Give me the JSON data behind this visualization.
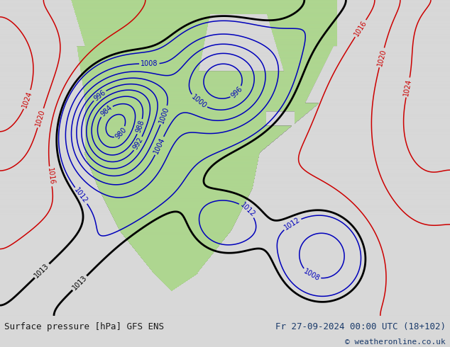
{
  "title_left": "Surface pressure [hPa] GFS ENS",
  "title_right": "Fr 27-09-2024 00:00 UTC (18+102)",
  "copyright": "© weatheronline.co.uk",
  "bg_color": "#d8d8d8",
  "land_color": "#aed690",
  "bottom_bar_color": "#e0e0e0",
  "text_color_left": "#1a1a1a",
  "text_color_right": "#1a3a6a",
  "contour_blue": "#0000bb",
  "contour_red": "#cc0000",
  "contour_black": "#000000",
  "figsize": [
    6.34,
    4.9
  ],
  "dpi": 100
}
